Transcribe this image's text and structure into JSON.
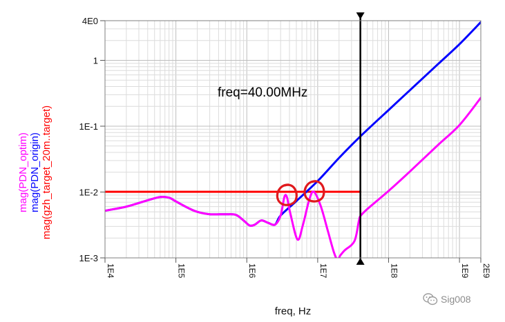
{
  "chart_data": {
    "type": "line",
    "x_scale": "log",
    "y_scale": "log",
    "xlim": [
      10000,
      2000000000
    ],
    "ylim": [
      0.001,
      4
    ],
    "xlabel": "freq, Hz",
    "ylabel_lines": [
      "mag(PDN_optim)",
      "mag(PDN_origin)",
      "mag(gzh_target_20m..target)"
    ],
    "x_ticks": [
      {
        "value": 10000,
        "label": "1E4"
      },
      {
        "value": 100000,
        "label": "1E5"
      },
      {
        "value": 1000000,
        "label": "1E6"
      },
      {
        "value": 10000000,
        "label": "1E7"
      },
      {
        "value": 100000000,
        "label": "1E8"
      },
      {
        "value": 1000000000,
        "label": "1E9"
      },
      {
        "value": 2000000000,
        "label": "2E9"
      }
    ],
    "y_ticks": [
      {
        "value": 4,
        "label": "4E0"
      },
      {
        "value": 1,
        "label": "1"
      },
      {
        "value": 0.1,
        "label": "1E-1"
      },
      {
        "value": 0.01,
        "label": "1E-2"
      },
      {
        "value": 0.001,
        "label": "1E-3"
      }
    ],
    "grid": true,
    "series": [
      {
        "name": "mag(PDN_optim)",
        "color": "#ff00ff",
        "points": [
          [
            10000,
            0.0052
          ],
          [
            20000,
            0.006
          ],
          [
            40000,
            0.0075
          ],
          [
            60000,
            0.0084
          ],
          [
            80000,
            0.0082
          ],
          [
            100000,
            0.0072
          ],
          [
            150000,
            0.0057
          ],
          [
            200000,
            0.005
          ],
          [
            300000,
            0.0046
          ],
          [
            500000,
            0.0046
          ],
          [
            700000,
            0.0045
          ],
          [
            900000,
            0.0037
          ],
          [
            1100000,
            0.0031
          ],
          [
            1300000,
            0.0032
          ],
          [
            1600000,
            0.0037
          ],
          [
            2000000,
            0.0034
          ],
          [
            2500000,
            0.0032
          ],
          [
            3000000,
            0.0044
          ],
          [
            3400000,
            0.0085
          ],
          [
            3700000,
            0.0082
          ],
          [
            4100000,
            0.0048
          ],
          [
            5200000,
            0.0019
          ],
          [
            6200000,
            0.0032
          ],
          [
            7600000,
            0.0076
          ],
          [
            8800000,
            0.0101
          ],
          [
            11000000,
            0.0062
          ],
          [
            14000000,
            0.0025
          ],
          [
            17000000,
            0.0012
          ],
          [
            19000000,
            0.00095
          ],
          [
            21000000,
            0.0011
          ],
          [
            24000000,
            0.0013
          ],
          [
            33000000,
            0.0018
          ],
          [
            38000000,
            0.0036
          ],
          [
            40000000,
            0.0043
          ],
          [
            50000000,
            0.0055
          ],
          [
            100000000,
            0.0104
          ],
          [
            200000000,
            0.0205
          ],
          [
            500000000,
            0.052
          ],
          [
            1000000000,
            0.104
          ],
          [
            2000000000,
            0.27
          ]
        ]
      },
      {
        "name": "mag(PDN_origin)",
        "color": "#0000ff",
        "points": [
          [
            10000,
            0.0052
          ],
          [
            20000,
            0.006
          ],
          [
            40000,
            0.0075
          ],
          [
            60000,
            0.0084
          ],
          [
            80000,
            0.0082
          ],
          [
            100000,
            0.0072
          ],
          [
            150000,
            0.0057
          ],
          [
            200000,
            0.005
          ],
          [
            300000,
            0.0046
          ],
          [
            500000,
            0.0046
          ],
          [
            700000,
            0.0045
          ],
          [
            900000,
            0.0037
          ],
          [
            1100000,
            0.0031
          ],
          [
            1300000,
            0.0032
          ],
          [
            1600000,
            0.0037
          ],
          [
            2000000,
            0.0034
          ],
          [
            2500000,
            0.0032
          ],
          [
            3000000,
            0.0044
          ],
          [
            5000000,
            0.0073
          ],
          [
            10000000,
            0.0147
          ],
          [
            20000000,
            0.033
          ],
          [
            40000000,
            0.07
          ],
          [
            100000000,
            0.176
          ],
          [
            200000000,
            0.352
          ],
          [
            500000000,
            0.88
          ],
          [
            1000000000,
            1.76
          ],
          [
            2000000000,
            3.8
          ]
        ]
      },
      {
        "name": "mag(gzh_target_20m..target)",
        "color": "#ff0000",
        "points": [
          [
            10000,
            0.0101
          ],
          [
            40000000,
            0.0101
          ]
        ]
      }
    ],
    "marker": {
      "freq": 40000000,
      "readout": "freq=40.00MHz"
    },
    "highlight_circles": [
      {
        "x": 3700000,
        "y": 0.009
      },
      {
        "x": 9000000,
        "y": 0.0102
      }
    ]
  },
  "watermark": {
    "text": "Sig008"
  }
}
